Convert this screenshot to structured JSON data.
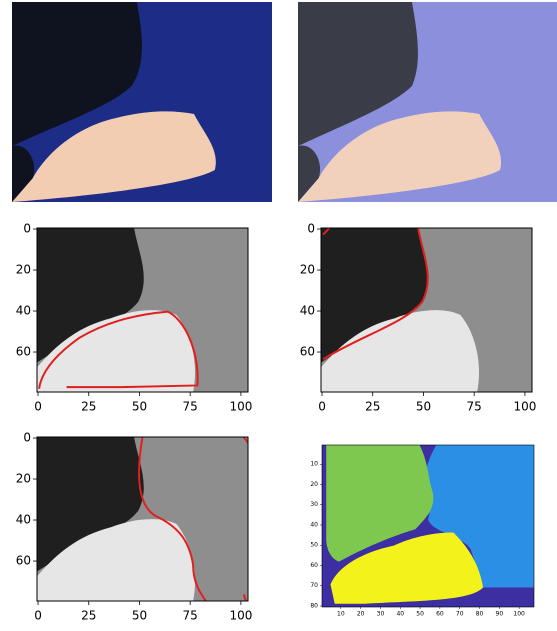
{
  "panels": [
    {
      "xlim": [
        -0.5,
        103.5
      ],
      "ylim": [
        79.5,
        -0.5
      ],
      "xticks": [
        0,
        25,
        50,
        75,
        100
      ],
      "yticks": [
        0,
        20,
        40,
        60
      ]
    },
    {
      "xlim": [
        -0.5,
        103.5
      ],
      "ylim": [
        79.5,
        -0.5
      ],
      "xticks": [
        0,
        25,
        50,
        75,
        100
      ],
      "yticks": [
        0,
        20,
        40,
        60
      ]
    },
    {
      "xlim": [
        -0.5,
        103.5
      ],
      "ylim": [
        79.5,
        -0.5
      ],
      "xticks": [
        0,
        25,
        50,
        75,
        100
      ],
      "yticks": [
        0,
        20,
        40,
        60
      ]
    },
    {
      "xlim": [
        0.5,
        107.5
      ],
      "ylim": [
        80.5,
        0.5
      ],
      "xticks": [
        10,
        20,
        30,
        40,
        50,
        60,
        70,
        80,
        90,
        100
      ],
      "yticks": [
        10,
        20,
        30,
        40,
        50,
        60,
        70,
        80
      ]
    }
  ]
}
